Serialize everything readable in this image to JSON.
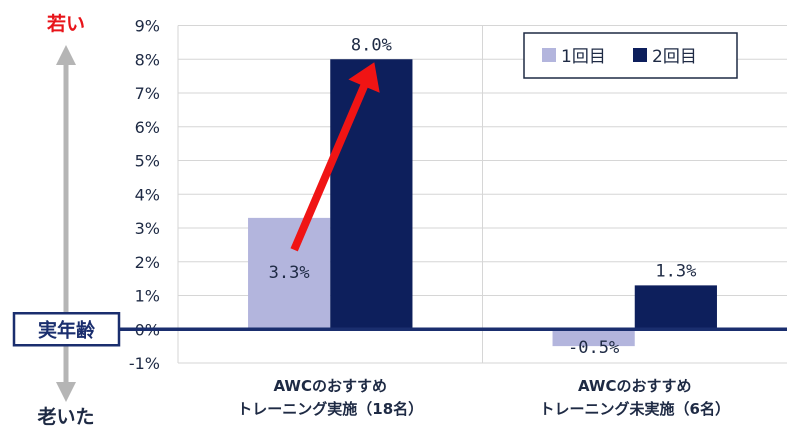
{
  "chart_data": {
    "type": "bar",
    "categories": [
      [
        "AWCのおすすめ",
        "トレーニング実施（18名）"
      ],
      [
        "AWCのおすすめ",
        "トレーニング未実施（6名）"
      ]
    ],
    "series": [
      {
        "name": "1回目",
        "values": [
          3.3,
          -0.5
        ],
        "labels": [
          "3.3%",
          "-0.5%"
        ],
        "color": "#b3b5dd"
      },
      {
        "name": "2回目",
        "values": [
          8.0,
          1.3
        ],
        "labels": [
          "8.0%",
          "1.3%"
        ],
        "color": "#0d1f5c"
      }
    ],
    "y_ticks": [
      -1,
      0,
      1,
      2,
      3,
      4,
      5,
      6,
      7,
      8,
      9
    ],
    "y_tick_labels": [
      "-1%",
      "0%",
      "1%",
      "2%",
      "3%",
      "4%",
      "5%",
      "6%",
      "7%",
      "8%",
      "9%"
    ],
    "ylim": [
      -1,
      9
    ],
    "grid": "horizontal",
    "legend_position": "top-right",
    "annotations": {
      "top_label": "若い",
      "bottom_label": "老いた",
      "baseline_label": "実年齢",
      "top_color": "#e8141a",
      "bottom_color": "#1e2a44",
      "arrow_color": "#f01414",
      "baseline_color": "#1a2e6e"
    }
  }
}
